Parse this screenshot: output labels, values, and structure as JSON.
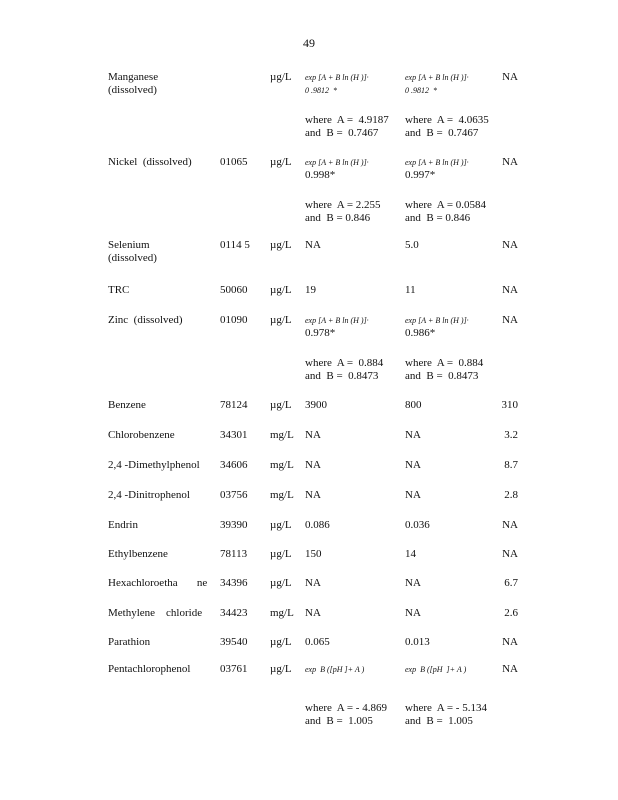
{
  "page_number": "49",
  "rows": [
    {
      "name": [
        "Manganese",
        "(dissolved)"
      ],
      "code": "",
      "unit": "µg/L",
      "c1": {
        "formula": "exp [A + B ln (H )]·",
        "factor": "0 .9812  *",
        "where": [
          "where  A =  4.9187",
          "and  B =  0.7467"
        ]
      },
      "c2": {
        "formula": "exp [A + B ln (H )]·",
        "factor": "0 .9812  *",
        "where": [
          "where  A =  4.0635",
          "and  B =  0.7467"
        ]
      },
      "c3": "NA"
    },
    {
      "name": [
        "Nickel  (dissolved)"
      ],
      "code": "01065",
      "unit": "µg/L",
      "c1": {
        "formula": "exp [A + B ln (H )]·",
        "factor": "0.998*",
        "where": [
          "where  A = 2.255",
          "and  B = 0.846"
        ]
      },
      "c2": {
        "formula": "exp [A + B ln (H )]·",
        "factor": "0.997*",
        "where": [
          "where  A = 0.0584",
          "and  B = 0.846"
        ]
      },
      "c3": "NA"
    },
    {
      "name": [
        "Selenium",
        "(dissolved)"
      ],
      "code": "0114 5",
      "unit": "µg/L",
      "c1": "NA",
      "c2": "5.0",
      "c3": "NA"
    },
    {
      "name": [
        "TRC"
      ],
      "code": "50060",
      "unit": "µg/L",
      "c1": "19",
      "c2": "11",
      "c3": "NA"
    },
    {
      "name": [
        "Zinc  (dissolved)"
      ],
      "code": "01090",
      "unit": "µg/L",
      "c1": {
        "formula": "exp [A + B ln (H )]·",
        "factor": "0.978*",
        "where": [
          "where  A =  0.884",
          "and  B =  0.8473"
        ]
      },
      "c2": {
        "formula": "exp [A + B ln (H )]·",
        "factor": "0.986*",
        "where": [
          "where  A =  0.884",
          "and  B =  0.8473"
        ]
      },
      "c3": "NA"
    },
    {
      "name": [
        "Benzene"
      ],
      "code": "78124",
      "unit": "µg/L",
      "c1": "3900",
      "c2": "800",
      "c3": "310"
    },
    {
      "name": [
        "Chlorobenzene"
      ],
      "code": "34301",
      "unit": "mg/L",
      "c1": "NA",
      "c2": "NA",
      "c3": "3.2"
    },
    {
      "name": [
        "2,4 -Dimethylphenol"
      ],
      "code": "34606",
      "unit": "mg/L",
      "c1": "NA",
      "c2": "NA",
      "c3": "8.7"
    },
    {
      "name": [
        "2,4 -Dinitrophenol"
      ],
      "code": "03756",
      "unit": "mg/L",
      "c1": "NA",
      "c2": "NA",
      "c3": "2.8"
    },
    {
      "name": [
        "Endrin"
      ],
      "code": "39390",
      "unit": "µg/L",
      "c1": "0.086",
      "c2": "0.036",
      "c3": "NA"
    },
    {
      "name": [
        "Ethylbenzene"
      ],
      "code": "78113",
      "unit": "µg/L",
      "c1": "150",
      "c2": "14",
      "c3": "NA"
    },
    {
      "name": [
        "Hexachloroetha       ne"
      ],
      "code": "34396",
      "unit": "µg/L",
      "c1": "NA",
      "c2": "NA",
      "c3": "6.7"
    },
    {
      "name": [
        "Methylene    chloride"
      ],
      "code": "34423",
      "unit": "mg/L",
      "c1": "NA",
      "c2": "NA",
      "c3": "2.6"
    },
    {
      "name": [
        "Parathion"
      ],
      "code": "39540",
      "unit": "µg/L",
      "c1": "0.065",
      "c2": "0.013",
      "c3": "NA"
    },
    {
      "name": [
        "Pentachlorophenol"
      ],
      "code": "03761",
      "unit": "µg/L",
      "c1": {
        "formula": "exp  B ([pH ]+ A )",
        "factor": "",
        "where": [
          "where  A = - 4.869",
          "and  B =  1.005"
        ]
      },
      "c2": {
        "formula": "exp  B ([pH  ]+ A )",
        "factor": "",
        "where": [
          "where  A = - 5.134",
          "and  B =  1.005"
        ]
      },
      "c3": "NA"
    }
  ]
}
